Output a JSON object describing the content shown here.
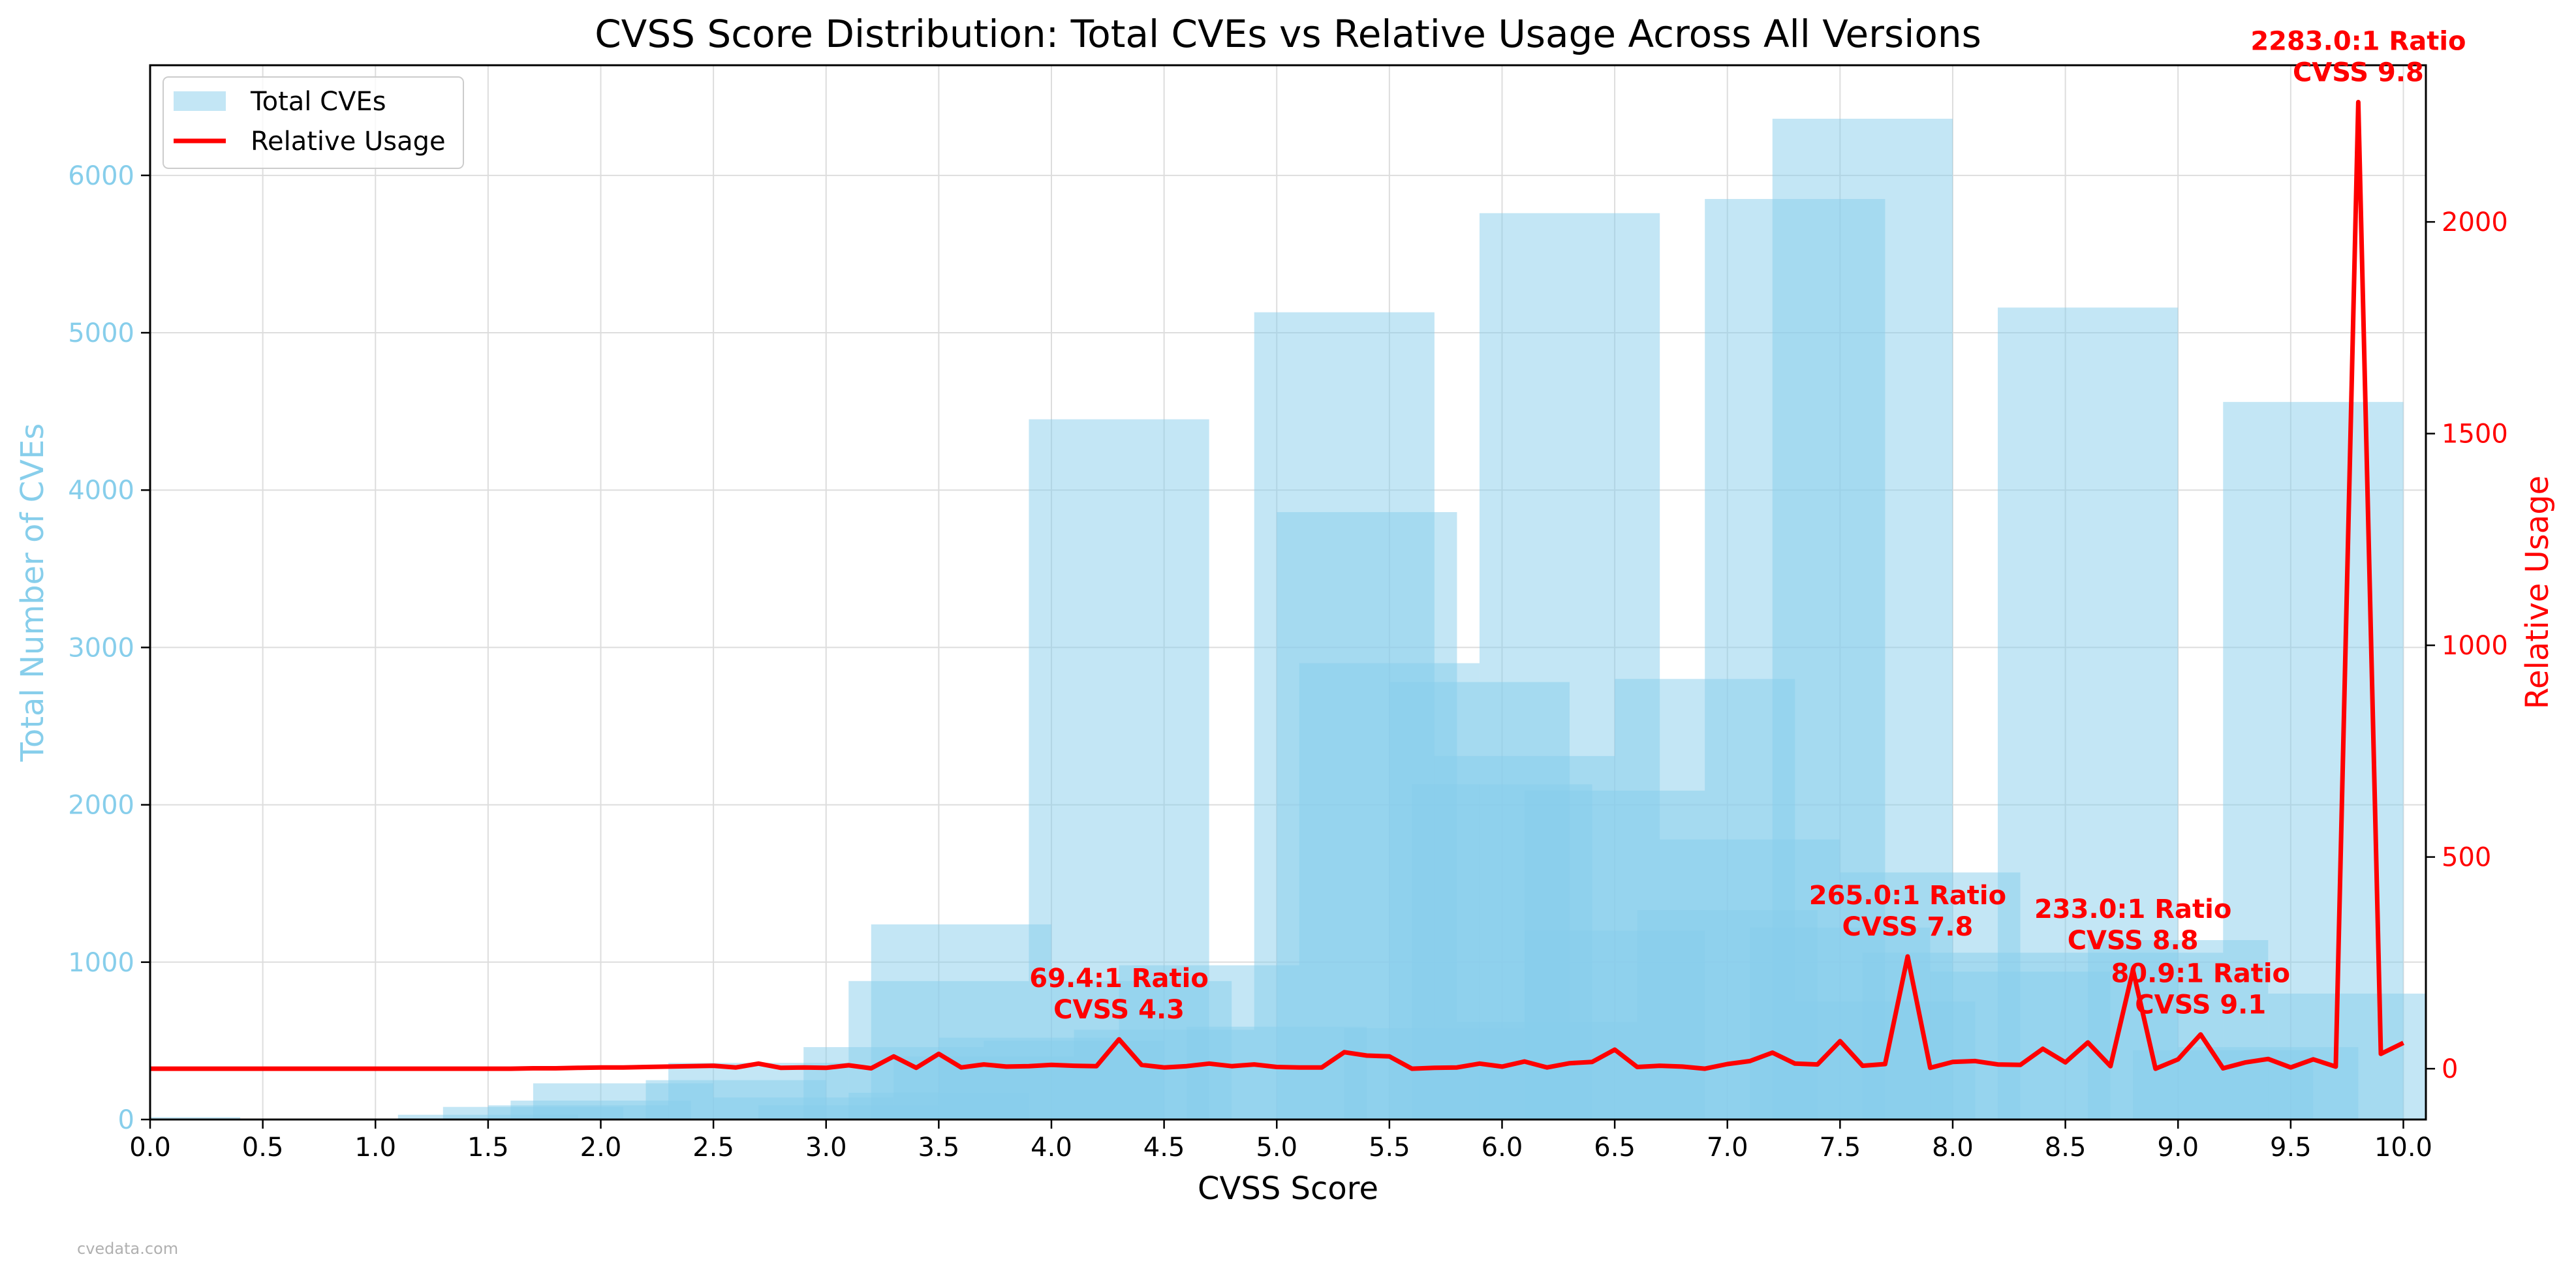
{
  "chart_data": {
    "type": "bar",
    "title": "CVSS Score Distribution: Total CVEs vs Relative Usage Across All Versions",
    "xlabel": "CVSS Score",
    "ylabel_left": "Total Number of CVEs",
    "ylabel_right": "Relative Usage",
    "xlim": [
      0.0,
      10.1
    ],
    "ylim_left": [
      0,
      6700
    ],
    "ylim_right": [
      -120,
      2370
    ],
    "x_ticks": [
      "0.0",
      "0.5",
      "1.0",
      "1.5",
      "2.0",
      "2.5",
      "3.0",
      "3.5",
      "4.0",
      "4.5",
      "5.0",
      "5.5",
      "6.0",
      "6.5",
      "7.0",
      "7.5",
      "8.0",
      "8.5",
      "9.0",
      "9.5",
      "10.0"
    ],
    "y_ticks_left": [
      "0",
      "1000",
      "2000",
      "3000",
      "4000",
      "5000",
      "6000"
    ],
    "y_ticks_right": [
      "0",
      "500",
      "1000",
      "1500",
      "2000"
    ],
    "grid": true,
    "legend_position": "top-left",
    "colors": {
      "bars": "#87ceeb",
      "line": "#ff0000",
      "left_axis": "#87ceeb",
      "right_axis": "#ff0000"
    },
    "series": [
      {
        "name": "Total CVEs",
        "type": "bar",
        "bar_width": 0.8,
        "points": [
          {
            "x": 0.0,
            "y": 15
          },
          {
            "x": 1.2,
            "y": 5
          },
          {
            "x": 1.5,
            "y": 30
          },
          {
            "x": 1.7,
            "y": 80
          },
          {
            "x": 1.9,
            "y": 90
          },
          {
            "x": 2.0,
            "y": 120
          },
          {
            "x": 2.1,
            "y": 230
          },
          {
            "x": 2.6,
            "y": 250
          },
          {
            "x": 2.7,
            "y": 360
          },
          {
            "x": 2.9,
            "y": 140
          },
          {
            "x": 3.5,
            "y": 880
          },
          {
            "x": 3.1,
            "y": 90
          },
          {
            "x": 3.3,
            "y": 460
          },
          {
            "x": 3.6,
            "y": 1240
          },
          {
            "x": 3.5,
            "y": 170
          },
          {
            "x": 3.7,
            "y": 400
          },
          {
            "x": 3.9,
            "y": 520
          },
          {
            "x": 4.1,
            "y": 500
          },
          {
            "x": 4.3,
            "y": 4450
          },
          {
            "x": 4.4,
            "y": 880
          },
          {
            "x": 4.5,
            "y": 570
          },
          {
            "x": 4.7,
            "y": 980
          },
          {
            "x": 5.0,
            "y": 590
          },
          {
            "x": 5.3,
            "y": 5130
          },
          {
            "x": 5.4,
            "y": 3860
          },
          {
            "x": 5.5,
            "y": 2900
          },
          {
            "x": 5.7,
            "y": 580
          },
          {
            "x": 5.9,
            "y": 2780
          },
          {
            "x": 6.0,
            "y": 2130
          },
          {
            "x": 6.1,
            "y": 2310
          },
          {
            "x": 6.2,
            "y": 620
          },
          {
            "x": 6.3,
            "y": 5760
          },
          {
            "x": 6.5,
            "y": 2090
          },
          {
            "x": 6.5,
            "y": 1200
          },
          {
            "x": 6.9,
            "y": 2800
          },
          {
            "x": 7.0,
            "y": 1330
          },
          {
            "x": 7.1,
            "y": 1780
          },
          {
            "x": 7.3,
            "y": 5850
          },
          {
            "x": 7.5,
            "y": 1220
          },
          {
            "x": 7.6,
            "y": 6360
          },
          {
            "x": 7.7,
            "y": 750
          },
          {
            "x": 7.9,
            "y": 1570
          },
          {
            "x": 8.0,
            "y": 1060
          },
          {
            "x": 8.3,
            "y": 940
          },
          {
            "x": 8.6,
            "y": 5160
          },
          {
            "x": 8.8,
            "y": 1060
          },
          {
            "x": 9.0,
            "y": 1140
          },
          {
            "x": 9.2,
            "y": 440
          },
          {
            "x": 9.4,
            "y": 460
          },
          {
            "x": 9.6,
            "y": 4560
          },
          {
            "x": 9.8,
            "y": 800
          }
        ]
      },
      {
        "name": "Relative Usage",
        "type": "line",
        "x": [
          0.0,
          0.1,
          0.2,
          0.3,
          0.4,
          0.5,
          0.6,
          0.7,
          0.8,
          0.9,
          1.0,
          1.1,
          1.2,
          1.3,
          1.4,
          1.5,
          1.6,
          1.7,
          1.8,
          1.9,
          2.0,
          2.1,
          2.2,
          2.3,
          2.4,
          2.5,
          2.6,
          2.7,
          2.8,
          2.9,
          3.0,
          3.1,
          3.2,
          3.3,
          3.4,
          3.5,
          3.6,
          3.7,
          3.8,
          3.9,
          4.0,
          4.1,
          4.2,
          4.3,
          4.4,
          4.5,
          4.6,
          4.7,
          4.8,
          4.9,
          5.0,
          5.1,
          5.2,
          5.3,
          5.4,
          5.5,
          5.6,
          5.7,
          5.8,
          5.9,
          6.0,
          6.1,
          6.2,
          6.3,
          6.4,
          6.5,
          6.6,
          6.7,
          6.8,
          6.9,
          7.0,
          7.1,
          7.2,
          7.3,
          7.4,
          7.5,
          7.6,
          7.7,
          7.8,
          7.9,
          8.0,
          8.1,
          8.2,
          8.3,
          8.4,
          8.5,
          8.6,
          8.7,
          8.8,
          8.9,
          9.0,
          9.1,
          9.2,
          9.3,
          9.4,
          9.5,
          9.6,
          9.7,
          9.8,
          9.9,
          10.0
        ],
        "y": [
          0,
          0,
          0,
          0,
          0,
          0,
          0,
          0,
          0,
          0,
          0,
          0,
          0,
          0,
          0,
          0,
          0,
          1,
          1,
          2,
          3,
          3,
          4,
          5,
          6,
          7,
          3,
          12,
          2,
          3,
          2,
          8,
          1,
          29,
          2,
          35,
          3,
          10,
          5,
          6,
          9,
          7,
          6,
          69.4,
          9,
          3,
          6,
          12,
          6,
          10,
          4,
          3,
          3,
          39,
          31,
          29,
          0,
          2,
          3,
          12,
          5,
          17,
          3,
          13,
          16,
          45,
          4,
          7,
          5,
          0,
          11,
          18,
          38,
          12,
          10,
          65,
          7,
          11,
          265.0,
          2,
          16,
          18,
          10,
          9,
          47,
          15,
          62,
          6,
          233.0,
          0,
          22,
          80.9,
          1,
          15,
          23,
          3,
          22,
          5,
          2283.0,
          35,
          61
        ]
      }
    ],
    "annotations": [
      {
        "text_line1": "69.4:1 Ratio",
        "text_line2": "CVSS 4.3",
        "x": 4.3,
        "y": 69.4
      },
      {
        "text_line1": "265.0:1 Ratio",
        "text_line2": "CVSS 7.8",
        "x": 7.8,
        "y": 265.0
      },
      {
        "text_line1": "233.0:1 Ratio",
        "text_line2": "CVSS 8.8",
        "x": 8.8,
        "y": 233.0
      },
      {
        "text_line1": "80.9:1 Ratio",
        "text_line2": "CVSS 9.1",
        "x": 9.1,
        "y": 80.9
      },
      {
        "text_line1": "2283.0:1 Ratio",
        "text_line2": "CVSS 9.8",
        "x": 9.8,
        "y": 2283.0
      }
    ]
  },
  "watermark": "cvedata.com"
}
